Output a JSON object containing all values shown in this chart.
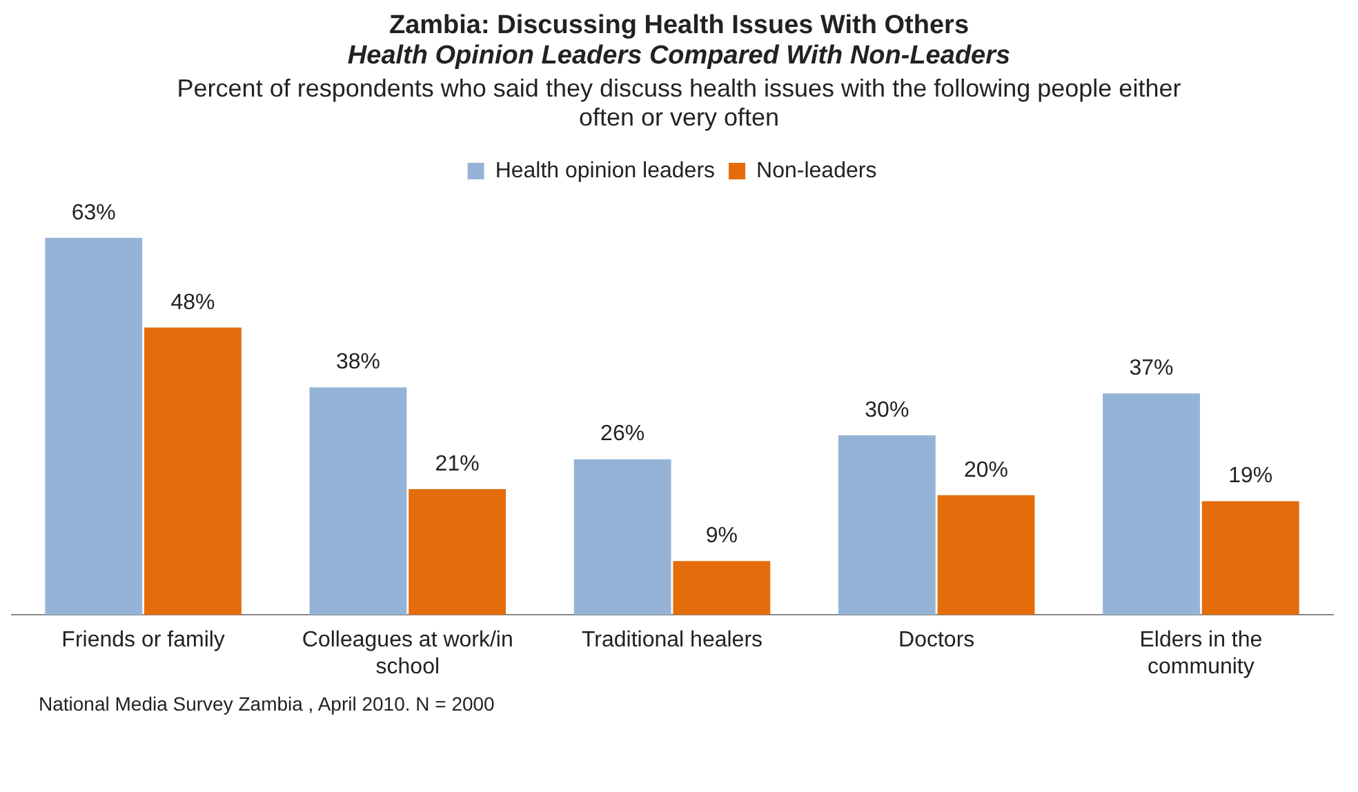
{
  "chart_data": {
    "type": "bar",
    "title": "Zambia: Discussing Health Issues With Others",
    "subtitle": "Health Opinion Leaders Compared With Non-Leaders",
    "annotations": [
      "Percent of respondents who said they discuss health issues with the following people either often or very often",
      "National Media Survey Zambia , April 2010. N = 2000"
    ],
    "categories": [
      "Friends or family",
      "Colleagues at work/in school",
      "Traditional healers",
      "Doctors",
      "Elders in the community"
    ],
    "series": [
      {
        "name": "Health opinion leaders",
        "color": "#95b3d7",
        "values": [
          63,
          38,
          26,
          30,
          37
        ],
        "value_labels": [
          "63%",
          "38%",
          "26%",
          "30%",
          "37%"
        ]
      },
      {
        "name": "Non-leaders",
        "color": "#e46c0a",
        "values": [
          48,
          21,
          9,
          20,
          19
        ],
        "value_labels": [
          "48%",
          "21%",
          "9%",
          "20%",
          "19%"
        ]
      }
    ],
    "legend": "top",
    "grid": false
  }
}
